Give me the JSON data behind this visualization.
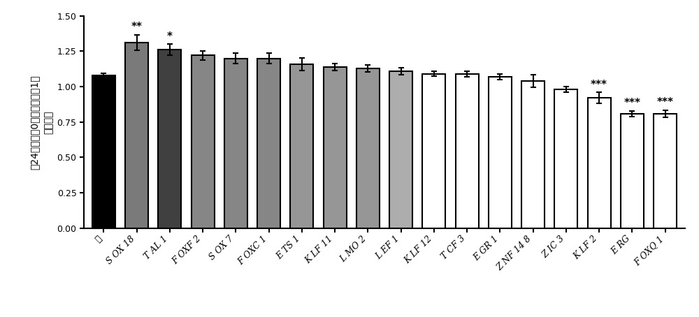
{
  "categories": [
    "泳",
    "S OX 18",
    "T AL 1",
    "F OXF 2",
    "S OX 7",
    "F OXC 1",
    "E TS 1",
    "K LF 11",
    "L MO 2",
    "L EF 1",
    "K LF 12",
    "T CF 3",
    "E GR 1",
    "Z NF 14 8",
    "Z IC 3",
    "K LF 2",
    "E RG",
    "F OXQ 1"
  ],
  "values": [
    1.08,
    1.31,
    1.26,
    1.22,
    1.2,
    1.2,
    1.16,
    1.14,
    1.13,
    1.11,
    1.09,
    1.09,
    1.07,
    1.04,
    0.98,
    0.92,
    0.81,
    0.81
  ],
  "errors": [
    0.015,
    0.055,
    0.04,
    0.03,
    0.035,
    0.035,
    0.045,
    0.025,
    0.025,
    0.025,
    0.018,
    0.02,
    0.02,
    0.045,
    0.02,
    0.04,
    0.02,
    0.025
  ],
  "bar_colors": [
    "#000000",
    "#7a7a7a",
    "#404040",
    "#868686",
    "#868686",
    "#868686",
    "#969696",
    "#969696",
    "#969696",
    "#adadad",
    "#ffffff",
    "#ffffff",
    "#ffffff",
    "#ffffff",
    "#ffffff",
    "#ffffff",
    "#ffffff",
    "#ffffff"
  ],
  "bar_edgecolors": [
    "#000000",
    "#000000",
    "#000000",
    "#000000",
    "#000000",
    "#000000",
    "#000000",
    "#000000",
    "#000000",
    "#000000",
    "#000000",
    "#000000",
    "#000000",
    "#000000",
    "#000000",
    "#000000",
    "#000000",
    "#000000"
  ],
  "significance": [
    "",
    "**",
    "*",
    "",
    "",
    "",
    "",
    "",
    "",
    "",
    "",
    "",
    "",
    "",
    "",
    "***",
    "***",
    "***"
  ],
  "sig_above_bar": [
    false,
    true,
    true,
    false,
    false,
    false,
    false,
    false,
    false,
    false,
    false,
    false,
    false,
    false,
    false,
    true,
    true,
    true
  ],
  "ylabel_line1": "（24小时，在0小时处，空＝1）",
  "ylabel_line2": "相对阻力",
  "ylim": [
    0.0,
    1.5
  ],
  "yticks": [
    0.0,
    0.25,
    0.5,
    0.75,
    1.0,
    1.25,
    1.5
  ],
  "background_color": "#ffffff",
  "bar_width": 0.7,
  "linewidth": 1.5,
  "capsize": 3,
  "fontsize_ticks": 9,
  "fontsize_ylabel": 10,
  "fontsize_sig": 11
}
